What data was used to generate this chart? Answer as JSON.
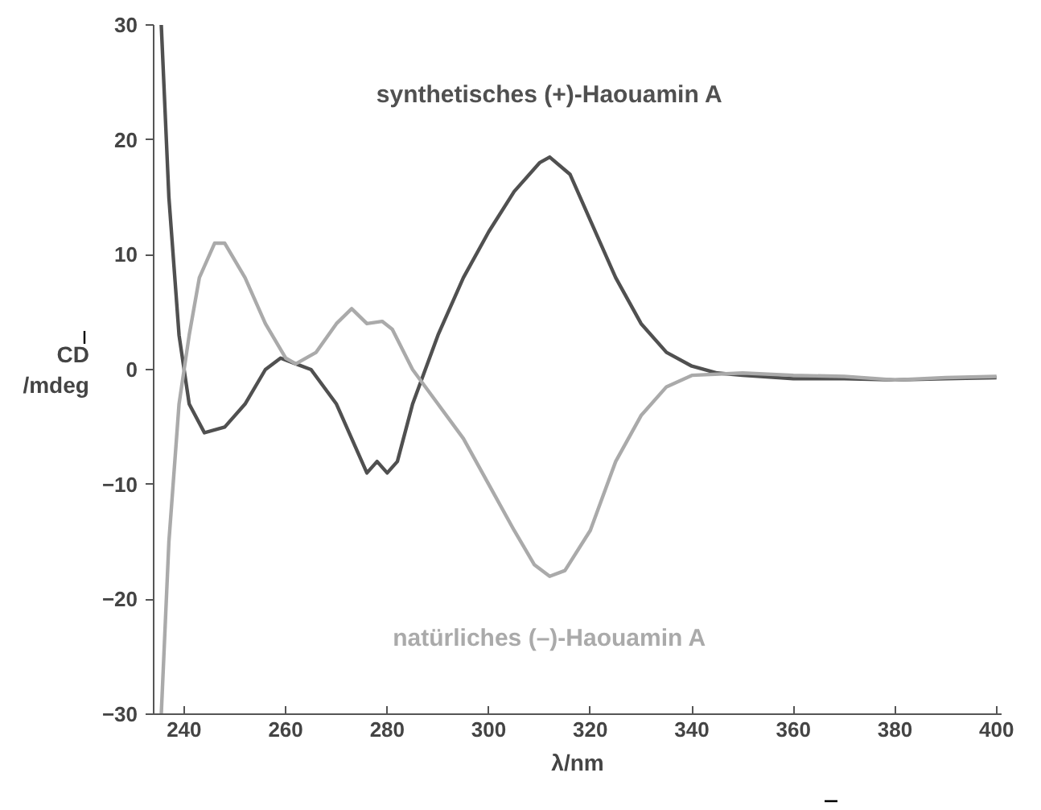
{
  "chart_data": {
    "type": "line",
    "xlabel": "λ/nm",
    "ylabel": "CD\n/mdeg",
    "xlim": [
      234,
      401
    ],
    "xticks": [
      240,
      260,
      280,
      300,
      320,
      340,
      360,
      380,
      400
    ],
    "ylim": [
      -30,
      30
    ],
    "yticks": [
      30,
      20,
      10,
      0,
      -10,
      -20,
      -30
    ],
    "grid": false,
    "legend": false,
    "marker": "none",
    "line_style": "solid",
    "series": [
      {
        "name": "synthetisches (+)-Haouamin A",
        "color": "#505050",
        "x": [
          235.5,
          237,
          239,
          241,
          244,
          248,
          252,
          256,
          259,
          262,
          265,
          270,
          274,
          276,
          278,
          280,
          282,
          285,
          290,
          295,
          300,
          305,
          310,
          312,
          316,
          320,
          325,
          330,
          335,
          340,
          345,
          350,
          360,
          370,
          380,
          390,
          400
        ],
        "values": [
          30,
          15,
          3,
          -3,
          -5.5,
          -5,
          -3,
          0,
          1,
          0.5,
          0,
          -3,
          -7,
          -9,
          -8,
          -9,
          -8,
          -3,
          3,
          8,
          12,
          15.5,
          18,
          18.5,
          17,
          13,
          8,
          4,
          1.5,
          0.3,
          -0.3,
          -0.5,
          -0.8,
          -0.8,
          -0.9,
          -0.8,
          -0.7
        ]
      },
      {
        "name": "natürliches (–)-Haouamin A",
        "color": "#aaaaaa",
        "x": [
          235.5,
          237,
          239,
          241,
          243,
          246,
          248,
          252,
          256,
          260,
          262,
          266,
          270,
          273,
          276,
          279,
          281,
          285,
          290,
          295,
          300,
          305,
          309,
          312,
          315,
          320,
          325,
          330,
          335,
          340,
          350,
          360,
          370,
          380,
          390,
          400
        ],
        "values": [
          -30,
          -15,
          -3,
          3,
          8,
          11,
          11,
          8,
          4,
          1,
          0.5,
          1.5,
          4,
          5.3,
          4,
          4.2,
          3.5,
          0,
          -3,
          -6,
          -10,
          -14,
          -17,
          -18,
          -17.5,
          -14,
          -8,
          -4,
          -1.5,
          -0.5,
          -0.3,
          -0.5,
          -0.6,
          -0.9,
          -0.7,
          -0.6
        ]
      }
    ]
  }
}
